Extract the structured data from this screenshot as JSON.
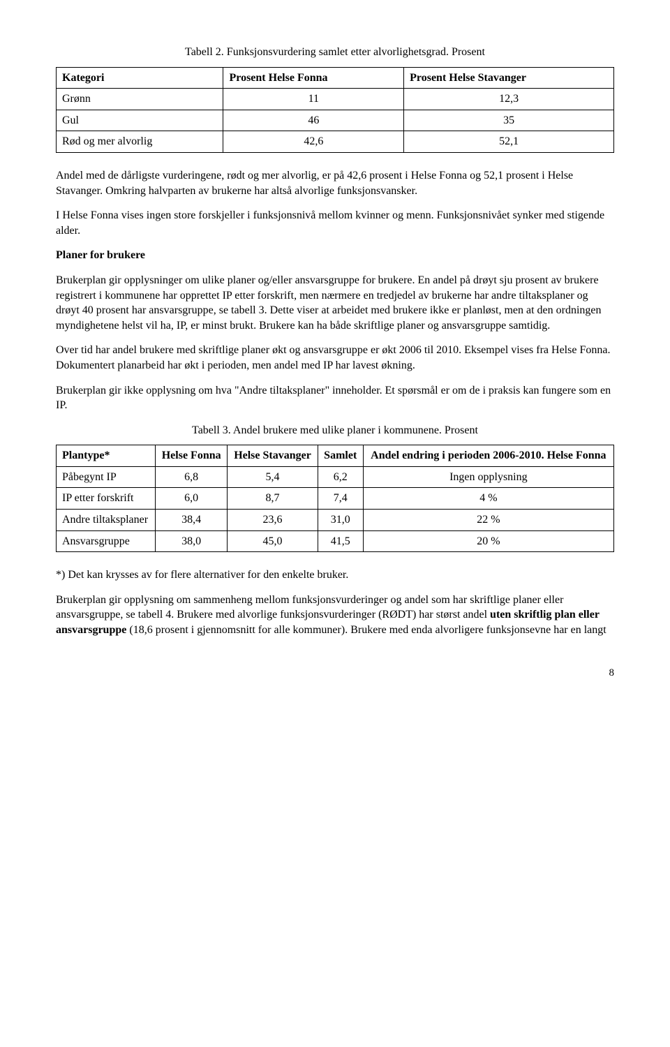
{
  "caption1": "Tabell 2. Funksjonsvurdering samlet etter alvorlighetsgrad. Prosent",
  "table1": {
    "headers": [
      "Kategori",
      "Prosent Helse Fonna",
      "Prosent Helse Stavanger"
    ],
    "rows": [
      [
        "Grønn",
        "11",
        "12,3"
      ],
      [
        "Gul",
        "46",
        "35"
      ],
      [
        "Rød og mer alvorlig",
        "42,6",
        "52,1"
      ]
    ]
  },
  "p1": "Andel med de dårligste vurderingene, rødt og mer alvorlig, er på 42,6 prosent i Helse Fonna og 52,1 prosent i Helse Stavanger. Omkring halvparten av brukerne har altså alvorlige funksjonsvansker.",
  "p2": "I Helse Fonna vises ingen store forskjeller i funksjonsnivå mellom kvinner og menn. Funksjonsnivået synker med stigende alder.",
  "h1": "Planer for brukere",
  "p3": "Brukerplan gir opplysninger om ulike planer og/eller ansvarsgruppe for brukere. En andel på drøyt sju prosent av brukere registrert i kommunene har opprettet IP etter forskrift, men nærmere en tredjedel av brukerne har andre tiltaksplaner og drøyt 40 prosent har ansvarsgruppe, se tabell 3. Dette viser at arbeidet med brukere ikke er planløst, men at den ordningen myndighetene helst vil ha, IP, er minst brukt. Brukere kan ha både skriftlige planer og ansvarsgruppe samtidig.",
  "p4": "Over tid har andel brukere med skriftlige planer økt og ansvarsgruppe er økt 2006 til 2010. Eksempel vises fra Helse Fonna. Dokumentert planarbeid har økt i perioden, men andel med IP har lavest økning.",
  "p5": "Brukerplan gir ikke opplysning om hva \"Andre tiltaksplaner\" inneholder. Et spørsmål er om de i praksis kan fungere som en IP.",
  "caption3": "Tabell 3. Andel brukere med ulike planer i kommunene. Prosent",
  "table3": {
    "headers": [
      "Plantype*",
      "Helse Fonna",
      "Helse Stavanger",
      "Samlet",
      "Andel endring i perioden 2006-2010. Helse Fonna"
    ],
    "rows": [
      [
        "Påbegynt IP",
        "6,8",
        "5,4",
        "6,2",
        "Ingen opplysning"
      ],
      [
        "IP etter forskrift",
        "6,0",
        "8,7",
        "7,4",
        "4 %"
      ],
      [
        "Andre tiltaksplaner",
        "38,4",
        "23,6",
        "31,0",
        "22 %"
      ],
      [
        "Ansvarsgruppe",
        "38,0",
        "45,0",
        "41,5",
        "20 %"
      ]
    ]
  },
  "footnote": "*) Det kan krysses av for flere alternativer for den enkelte bruker.",
  "p6a": "Brukerplan gir opplysning om sammenheng mellom funksjonsvurderinger og andel som har skriftlige planer eller ansvarsgruppe, se tabell 4. Brukere med alvorlige funksjonsvurderinger (RØDT) har størst andel ",
  "p6b": "uten skriftlig plan eller ansvarsgruppe",
  "p6c": " (18,6 prosent i gjennomsnitt for alle kommuner). Brukere med enda alvorligere funksjonsevne har en langt",
  "pageNumber": "8"
}
